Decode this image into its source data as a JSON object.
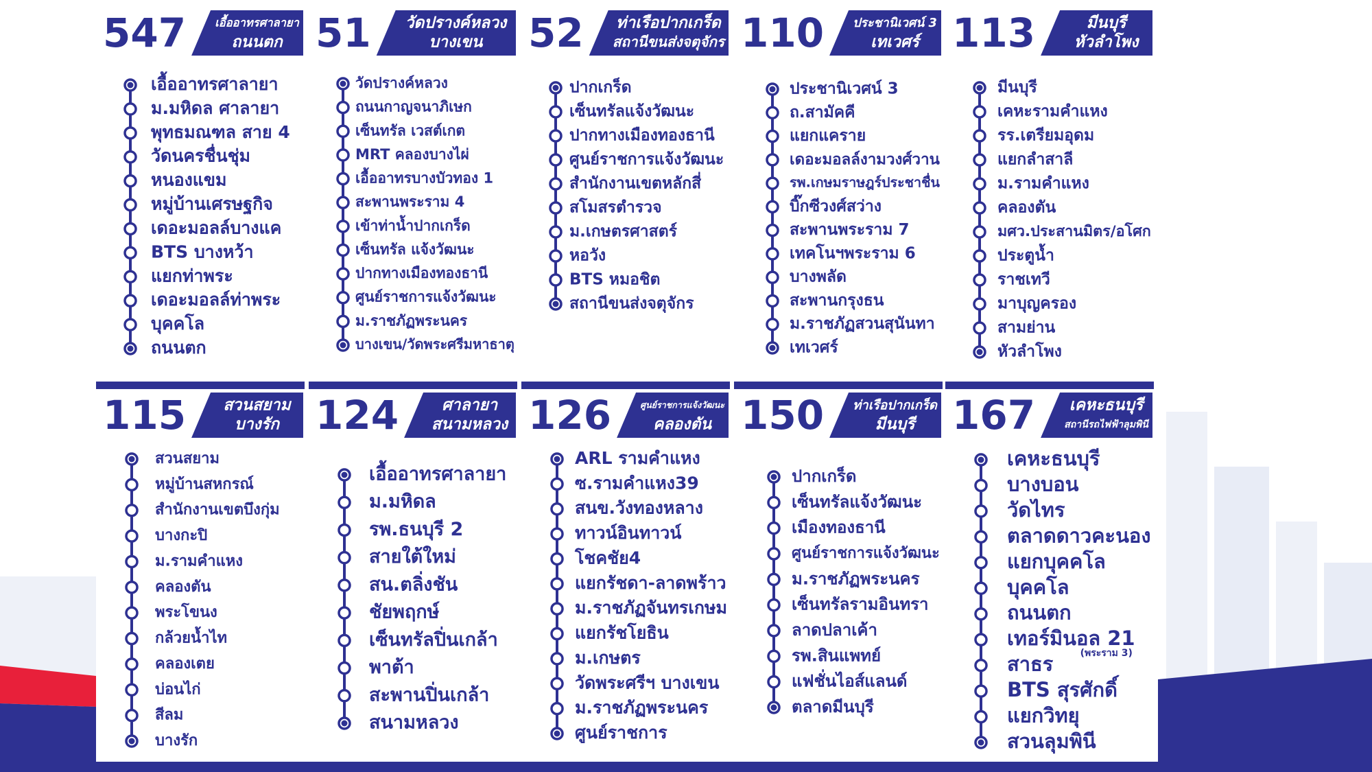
{
  "routes": [
    {
      "number": "547",
      "header_lines": [
        "เอื้ออาทรศาลายา",
        "ถนนตก"
      ],
      "stops": [
        "เอื้ออาทรศาลายา",
        "ม.มหิดล ศาลายา",
        "พุทธมณฑล สาย 4",
        "วัดนครชื่นชุ่ม",
        "หนองแขม",
        "หมู่บ้านเศรษฐกิจ",
        "เดอะมอลล์บางแค",
        "BTS บางหว้า",
        "แยกท่าพระ",
        "เดอะมอลล์ท่าพระ",
        "บุคคโล",
        "ถนนตก"
      ]
    },
    {
      "number": "51",
      "header_lines": [
        "วัดปรางค์หลวง",
        "บางเขน"
      ],
      "stops": [
        "วัดปรางค์หลวง",
        "ถนนกาญจนาภิเษก",
        "เซ็นทรัล เวสต์เกต",
        "MRT คลองบางไผ่",
        "เอื้ออาทรบางบัวทอง 1",
        "สะพานพระราม 4",
        "เข้าท่าน้ำปากเกร็ด",
        "เซ็นทรัล แจ้งวัฒนะ",
        "ปากทางเมืองทองธานี",
        "ศูนย์ราชการแจ้งวัฒนะ",
        "ม.ราชภัฏพระนคร",
        "บางเขน/วัดพระศรีมหาธาตุ"
      ]
    },
    {
      "number": "52",
      "header_lines": [
        "ท่าเรือปากเกร็ด",
        "สถานีขนส่งจตุจักร"
      ],
      "stops": [
        "ปากเกร็ด",
        "เซ็นทรัลแจ้งวัฒนะ",
        "ปากทางเมืองทองธานี",
        "ศูนย์ราชการแจ้งวัฒนะ",
        "สำนักงานเขตหลักสี่",
        "สโมสรตำรวจ",
        "ม.เกษตรศาสตร์",
        "หอวัง",
        "BTS หมอชิต",
        "สถานีขนส่งจตุจักร"
      ]
    },
    {
      "number": "110",
      "header_lines": [
        "ประชานิเวศน์ 3",
        "เทเวศร์"
      ],
      "stops": [
        "ประชานิเวศน์ 3",
        "ถ.สามัคคี",
        "แยกแคราย",
        "เดอะมอลล์งามวงศ์วาน",
        "รพ.เกษมราษฎร์ประชาชื่น",
        "บิ๊กซีวงศ์สว่าง",
        "สะพานพระราม 7",
        "เทคโนฯพระราม 6",
        "บางพลัด",
        "สะพานกรุงธน",
        "ม.ราชภัฏสวนสุนันทา",
        "เทเวศร์"
      ]
    },
    {
      "number": "113",
      "header_lines": [
        "มีนบุรี",
        "หัวลำโพง"
      ],
      "stops": [
        "มีนบุรี",
        "เคหะรามคำแหง",
        "รร.เตรียมอุดม",
        "แยกลำสาลี",
        "ม.รามคำแหง",
        "คลองตัน",
        "มศว.ประสานมิตร/อโศก",
        "ประตูน้ำ",
        "ราชเทวี",
        "มาบุญครอง",
        "สามย่าน",
        "หัวลำโพง"
      ]
    },
    {
      "number": "115",
      "header_lines": [
        "สวนสยาม",
        "บางรัก"
      ],
      "stops": [
        "สวนสยาม",
        "หมู่บ้านสหกรณ์",
        "สำนักงานเขตบึงกุ่ม",
        "บางกะปิ",
        "ม.รามคำแหง",
        "คลองตัน",
        "พระโขนง",
        "กล้วยน้ำไท",
        "คลองเตย",
        "บ่อนไก่",
        "สีลม",
        "บางรัก"
      ]
    },
    {
      "number": "124",
      "header_lines": [
        "ศาลายา",
        "สนามหลวง"
      ],
      "stops": [
        "เอื้ออาทรศาลายา",
        "ม.มหิดล",
        "รพ.ธนบุรี 2",
        "สายใต้ใหม่",
        "สน.ตลิ่งชัน",
        "ชัยพฤกษ์",
        "เซ็นทรัลปิ่นเกล้า",
        "พาต้า",
        "สะพานปิ่นเกล้า",
        "สนามหลวง"
      ]
    },
    {
      "number": "126",
      "header_lines": [
        "ศูนย์ราชการแจ้งวัฒนะ",
        "คลองตัน"
      ],
      "stops": [
        "ARL รามคำแหง",
        "ซ.รามคำแหง39",
        "สนข.วังทองหลาง",
        "ทาวน์อินทาวน์",
        "โชคชัย4",
        "แยกรัชดา-ลาดพร้าว",
        "ม.ราชภัฏจันทรเกษม",
        "แยกรัชโยธิน",
        "ม.เกษตร",
        "วัดพระศรีฯ บางเขน",
        "ม.ราชภัฏพระนคร",
        "ศูนย์ราชการ"
      ]
    },
    {
      "number": "150",
      "header_lines": [
        "ท่าเรือปากเกร็ด",
        "มีนบุรี"
      ],
      "stops": [
        "ปากเกร็ด",
        "เซ็นทรัลแจ้งวัฒนะ",
        "เมืองทองธานี",
        "ศูนย์ราชการแจ้งวัฒนะ",
        "ม.ราชภัฏพระนคร",
        "เซ็นทรัลรามอินทรา",
        "ลาดปลาเค้า",
        "รพ.สินแพทย์",
        "แฟชั่นไอส์แลนด์",
        "ตลาดมีนบุรี"
      ]
    },
    {
      "number": "167",
      "header_lines": [
        "เคหะธนบุรี",
        "สถานีรถไฟฟ้าลุมพินี"
      ],
      "stops": [
        "เคหะธนบุรี",
        "บางบอน",
        "วัดไทร",
        "ตลาดดาวคะนอง",
        "แยกบุคคโล",
        "บุคคโล",
        "ถนนตก",
        {
          "name": "เทอร์มินอล 21",
          "note": "(พระราม 3)"
        },
        "สาธร",
        "BTS สุรศักดิ์",
        "แยกวิทยุ",
        "สวนลุมพินี"
      ]
    }
  ]
}
